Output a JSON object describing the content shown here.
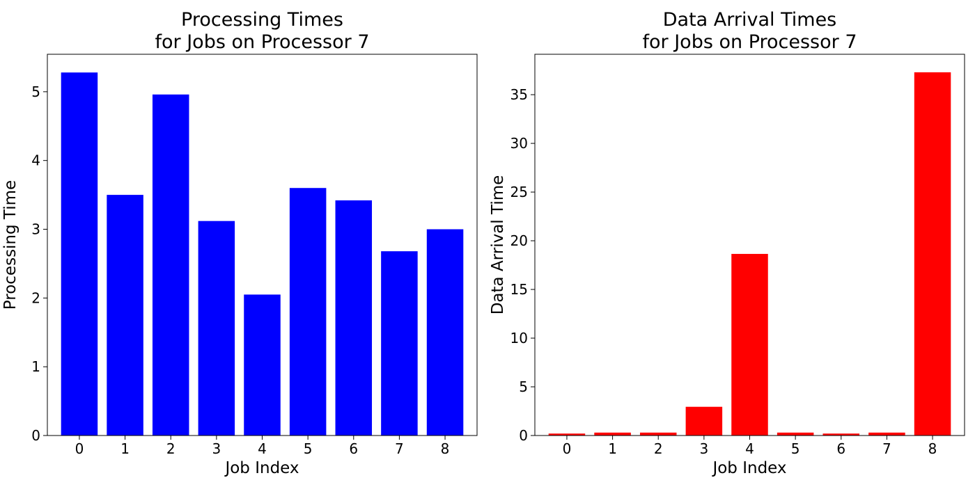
{
  "chart_data": [
    {
      "type": "bar",
      "title": [
        "Processing Times",
        "for Jobs on Processor 7"
      ],
      "xlabel": "Job Index",
      "ylabel": "Processing Time",
      "categories": [
        "0",
        "1",
        "2",
        "3",
        "4",
        "5",
        "6",
        "7",
        "8"
      ],
      "values": [
        5.28,
        3.5,
        4.96,
        3.12,
        2.05,
        3.6,
        3.42,
        2.68,
        3.0
      ],
      "color": "#0000ff",
      "ylim": [
        0,
        5.545
      ],
      "yticks": [
        0,
        1,
        2,
        3,
        4,
        5
      ],
      "grid": false,
      "legend": "none"
    },
    {
      "type": "bar",
      "title": [
        "Data Arrival Times",
        "for Jobs on Processor 7"
      ],
      "xlabel": "Job Index",
      "ylabel": "Data Arrival Time",
      "categories": [
        "0",
        "1",
        "2",
        "3",
        "4",
        "5",
        "6",
        "7",
        "8"
      ],
      "values": [
        0.2,
        0.3,
        0.3,
        2.95,
        18.65,
        0.3,
        0.2,
        0.3,
        37.3
      ],
      "color": "#ff0000",
      "ylim": [
        0,
        39.15
      ],
      "yticks": [
        0,
        5,
        10,
        15,
        20,
        25,
        30,
        35
      ],
      "grid": false,
      "legend": "none"
    }
  ]
}
